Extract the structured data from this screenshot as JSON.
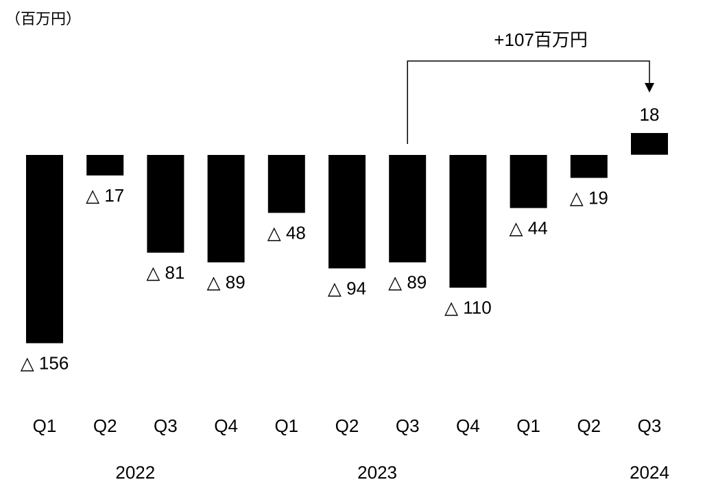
{
  "chart_data": {
    "type": "bar",
    "unit_label": "（百万円）",
    "categories": [
      "Q1",
      "Q2",
      "Q3",
      "Q4",
      "Q1",
      "Q2",
      "Q3",
      "Q4",
      "Q1",
      "Q2",
      "Q3"
    ],
    "years": [
      {
        "label": "2022",
        "start": 0,
        "end": 3
      },
      {
        "label": "2023",
        "start": 4,
        "end": 7
      },
      {
        "label": "2024",
        "start": 8,
        "end": 10
      }
    ],
    "values": [
      -156,
      -17,
      -81,
      -89,
      -48,
      -94,
      -89,
      -110,
      -44,
      -19,
      18
    ],
    "value_labels": [
      "△ 156",
      "△ 17",
      "△ 81",
      "△ 89",
      "△ 48",
      "△ 94",
      "△ 89",
      "△ 110",
      "△ 44",
      "△ 19",
      "18"
    ],
    "annotation": {
      "text": "+107百万円",
      "from_index": 6,
      "to_index": 10
    },
    "bar_color": "#000000",
    "grid": false,
    "ylim": [
      -160,
      20
    ]
  }
}
